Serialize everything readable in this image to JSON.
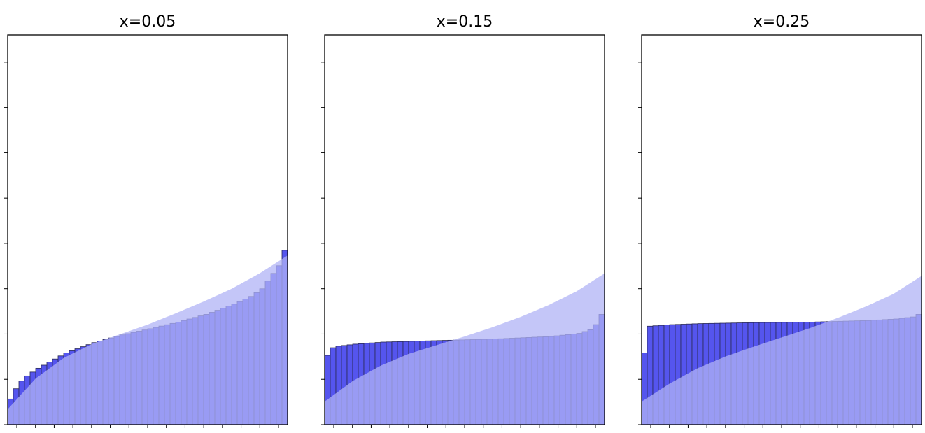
{
  "colors": {
    "bar_fill": "#5555ee",
    "bar_edge": "#2a2a55",
    "curve_fill": "#b0b3f5",
    "axes_edge": "#000000"
  },
  "chart_data": [
    {
      "type": "bar",
      "title": "x=0.05",
      "xlabel": "",
      "ylabel": "",
      "grid": false,
      "xlim": [
        0,
        50
      ],
      "ylim": [
        0,
        7.6
      ],
      "y_tick_count": 8,
      "x_tick_count": 15,
      "bar_count": 50,
      "bar_values_anchor_points": [
        [
          0,
          0.5
        ],
        [
          1,
          0.7
        ],
        [
          2,
          0.85
        ],
        [
          3,
          0.95
        ],
        [
          5,
          1.1
        ],
        [
          10,
          1.4
        ],
        [
          15,
          1.6
        ],
        [
          20,
          1.75
        ],
        [
          25,
          1.87
        ],
        [
          30,
          2.0
        ],
        [
          35,
          2.15
        ],
        [
          40,
          2.35
        ],
        [
          43,
          2.5
        ],
        [
          45,
          2.65
        ],
        [
          46,
          2.8
        ],
        [
          47,
          2.95
        ],
        [
          48,
          3.1
        ],
        [
          49,
          3.4
        ]
      ],
      "shaded_curve_anchor_points": [
        [
          0,
          0.3
        ],
        [
          5,
          0.9
        ],
        [
          10,
          1.3
        ],
        [
          15,
          1.57
        ],
        [
          20,
          1.76
        ],
        [
          25,
          1.95
        ],
        [
          30,
          2.17
        ],
        [
          35,
          2.4
        ],
        [
          40,
          2.65
        ],
        [
          45,
          2.95
        ],
        [
          50,
          3.3
        ]
      ]
    },
    {
      "type": "bar",
      "title": "x=0.15",
      "xlabel": "",
      "ylabel": "",
      "grid": false,
      "xlim": [
        0,
        50
      ],
      "ylim": [
        0,
        7.6
      ],
      "y_tick_count": 8,
      "x_tick_count": 15,
      "bar_count": 50,
      "bar_values_anchor_points": [
        [
          0,
          1.35
        ],
        [
          1,
          1.5
        ],
        [
          2,
          1.53
        ],
        [
          5,
          1.57
        ],
        [
          10,
          1.61
        ],
        [
          20,
          1.64
        ],
        [
          30,
          1.67
        ],
        [
          40,
          1.72
        ],
        [
          45,
          1.78
        ],
        [
          47,
          1.85
        ],
        [
          48,
          1.95
        ],
        [
          49,
          2.15
        ]
      ],
      "shaded_curve_anchor_points": [
        [
          0,
          0.45
        ],
        [
          5,
          0.85
        ],
        [
          10,
          1.15
        ],
        [
          15,
          1.38
        ],
        [
          20,
          1.55
        ],
        [
          25,
          1.72
        ],
        [
          30,
          1.9
        ],
        [
          35,
          2.1
        ],
        [
          40,
          2.33
        ],
        [
          45,
          2.6
        ],
        [
          50,
          2.95
        ]
      ]
    },
    {
      "type": "bar",
      "title": "x=0.25",
      "xlabel": "",
      "ylabel": "",
      "grid": false,
      "xlim": [
        0,
        50
      ],
      "ylim": [
        0,
        7.6
      ],
      "y_tick_count": 8,
      "x_tick_count": 15,
      "bar_count": 50,
      "bar_values_anchor_points": [
        [
          0,
          1.4
        ],
        [
          1,
          1.92
        ],
        [
          5,
          1.95
        ],
        [
          10,
          1.97
        ],
        [
          20,
          1.99
        ],
        [
          30,
          2.0
        ],
        [
          40,
          2.03
        ],
        [
          45,
          2.06
        ],
        [
          48,
          2.1
        ],
        [
          49,
          2.15
        ]
      ],
      "shaded_curve_anchor_points": [
        [
          0,
          0.45
        ],
        [
          5,
          0.8
        ],
        [
          10,
          1.1
        ],
        [
          15,
          1.33
        ],
        [
          20,
          1.52
        ],
        [
          25,
          1.7
        ],
        [
          30,
          1.88
        ],
        [
          35,
          2.08
        ],
        [
          40,
          2.3
        ],
        [
          45,
          2.55
        ],
        [
          50,
          2.9
        ]
      ]
    }
  ]
}
